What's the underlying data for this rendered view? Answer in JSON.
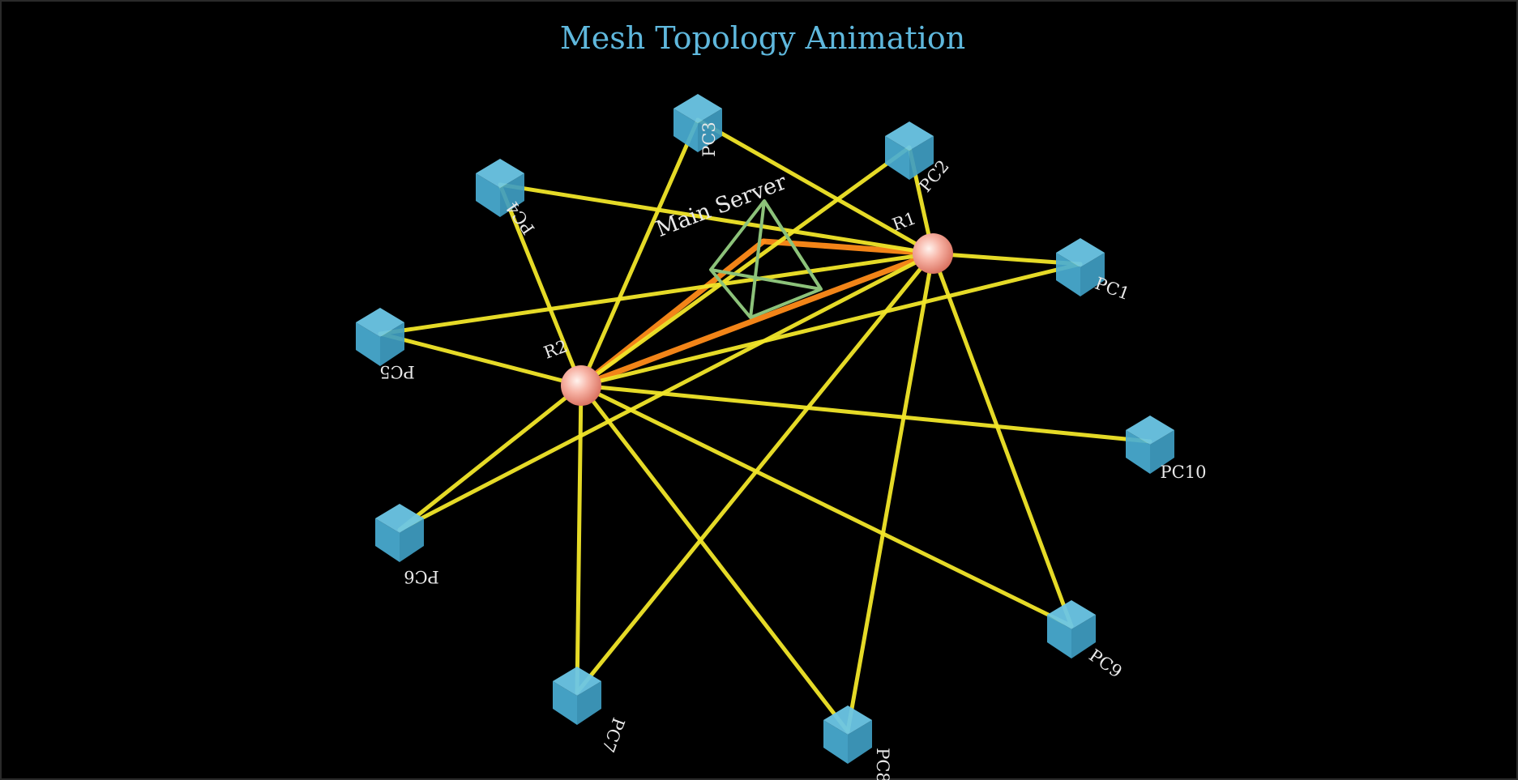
{
  "title": "Mesh Topology Animation",
  "colors": {
    "background": "#000000",
    "title": "#5fb8dd",
    "link": "#f2e62a",
    "active_link": "#ff8c1a",
    "pc": "#4fb3d9",
    "router": "#f5a99a",
    "server": "#8cc27a",
    "label": "#e8e8e8"
  },
  "server": {
    "label": "Main Server",
    "icon": "pyramid-icon"
  },
  "routers": [
    {
      "id": "R1",
      "label": "R1"
    },
    {
      "id": "R2",
      "label": "R2"
    }
  ],
  "pcs": [
    {
      "id": "PC1",
      "label": "PC1"
    },
    {
      "id": "PC2",
      "label": "PC2"
    },
    {
      "id": "PC3",
      "label": "PC3"
    },
    {
      "id": "PC4",
      "label": "PC4"
    },
    {
      "id": "PC5",
      "label": "PC5"
    },
    {
      "id": "PC6",
      "label": "PC6"
    },
    {
      "id": "PC7",
      "label": "PC7"
    },
    {
      "id": "PC8",
      "label": "PC8"
    },
    {
      "id": "PC9",
      "label": "PC9"
    },
    {
      "id": "PC10",
      "label": "PC10"
    }
  ],
  "links": [
    [
      "R1",
      "R2"
    ],
    [
      "R1",
      "Main Server"
    ],
    [
      "R2",
      "Main Server"
    ],
    [
      "R1",
      "PC1"
    ],
    [
      "R1",
      "PC2"
    ],
    [
      "R1",
      "PC3"
    ],
    [
      "R1",
      "PC4"
    ],
    [
      "R1",
      "PC5"
    ],
    [
      "R1",
      "PC6"
    ],
    [
      "R1",
      "PC7"
    ],
    [
      "R1",
      "PC8"
    ],
    [
      "R1",
      "PC9"
    ],
    [
      "R2",
      "PC1"
    ],
    [
      "R2",
      "PC2"
    ],
    [
      "R2",
      "PC3"
    ],
    [
      "R2",
      "PC4"
    ],
    [
      "R2",
      "PC5"
    ],
    [
      "R2",
      "PC6"
    ],
    [
      "R2",
      "PC7"
    ],
    [
      "R2",
      "PC8"
    ],
    [
      "R2",
      "PC9"
    ],
    [
      "R2",
      "PC10"
    ]
  ],
  "active_links": [
    [
      "R1",
      "R2"
    ],
    [
      "R1",
      "Main Server"
    ],
    [
      "R2",
      "Main Server"
    ]
  ]
}
